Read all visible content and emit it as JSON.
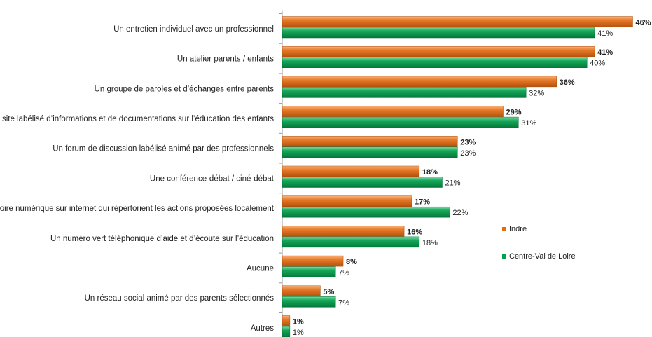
{
  "chart_data": {
    "type": "bar",
    "orientation": "horizontal",
    "categories": [
      "Un entretien individuel avec un professionnel",
      "Un atelier parents / enfants",
      "Un groupe de paroles et d’échanges entre parents",
      "Un site labélisé d’informations et de documentations sur l’éducation des enfants",
      "Un forum de discussion labélisé animé par des professionnels",
      "Une conférence-débat / ciné-débat",
      "Un répertoire numérique sur internet qui répertorient les actions proposées localement",
      "Un numéro vert téléphonique d’aide et d’écoute sur l’éducation",
      "Aucune",
      "Un réseau social animé par des parents sélectionnés",
      "Autres"
    ],
    "series": [
      {
        "name": "Indre",
        "color": "#E46C0A",
        "values": [
          46,
          41,
          36,
          29,
          23,
          18,
          17,
          16,
          8,
          5,
          1
        ],
        "labels": [
          "46%",
          "41%",
          "36%",
          "29%",
          "23%",
          "18%",
          "17%",
          "16%",
          "8%",
          "5%",
          "1%"
        ]
      },
      {
        "name": "Centre-Val de Loire",
        "color": "#00A050",
        "values": [
          41,
          40,
          32,
          31,
          23,
          21,
          22,
          18,
          7,
          7,
          1
        ],
        "labels": [
          "41%",
          "40%",
          "32%",
          "31%",
          "23%",
          "21%",
          "22%",
          "18%",
          "7%",
          "7%",
          "1%"
        ]
      }
    ],
    "xlim": [
      0,
      46
    ],
    "legend_position": "right",
    "grid": false
  }
}
